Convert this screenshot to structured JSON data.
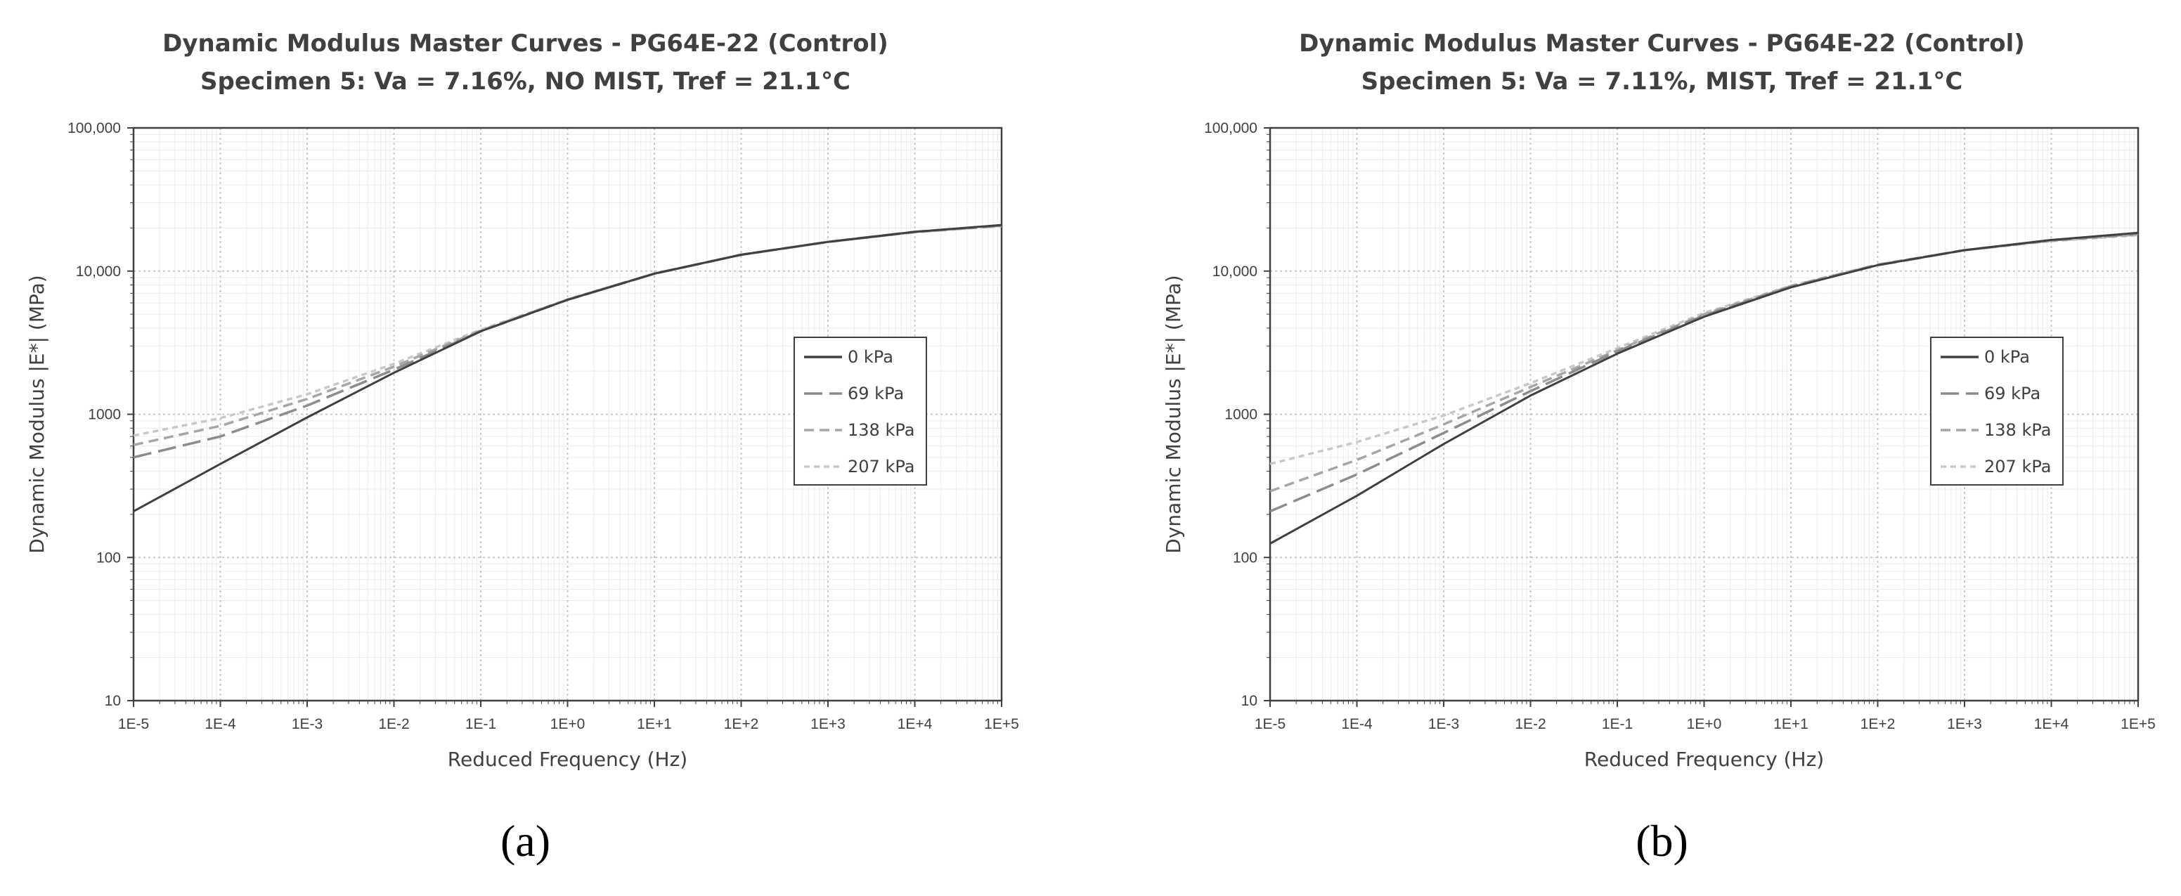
{
  "chart_data": [
    {
      "type": "line",
      "panel_label": "(a)",
      "title": "Dynamic Modulus Master Curves - PG64E-22 (Control)",
      "subtitle": "Specimen 5: Va = 7.16%, NO MIST, Tref = 21.1°C",
      "xlabel": "Reduced Frequency (Hz)",
      "ylabel": "Dynamic Modulus |E*| (MPa)",
      "xscale": "log",
      "yscale": "log",
      "xlim": [
        1e-05,
        100000
      ],
      "ylim": [
        10,
        100000
      ],
      "x_tick_labels": [
        "1E-5",
        "1E-4",
        "1E-3",
        "1E-2",
        "1E-1",
        "1E+0",
        "1E+1",
        "1E+2",
        "1E+3",
        "1E+4",
        "1E+5"
      ],
      "y_tick_labels": [
        "10",
        "100",
        "1000",
        "10,000",
        "100,000"
      ],
      "grid": true,
      "legend_position": "center-right",
      "x": [
        1e-05,
        0.0001,
        0.001,
        0.01,
        0.1,
        1,
        10,
        100,
        1000,
        10000,
        100000
      ],
      "series": [
        {
          "name": "0 kPa",
          "color": "#404040",
          "dash": "solid",
          "values": [
            210,
            450,
            950,
            1950,
            3800,
            6300,
            9600,
            13000,
            16000,
            18800,
            21000
          ]
        },
        {
          "name": "69 kPa",
          "color": "#8c8c8c",
          "dash": "long-dash",
          "values": [
            500,
            700,
            1150,
            2050,
            3800,
            6300,
            9600,
            13000,
            16000,
            18800,
            20800
          ]
        },
        {
          "name": "138 kPa",
          "color": "#a6a6a6",
          "dash": "dash",
          "values": [
            610,
            830,
            1280,
            2150,
            3850,
            6300,
            9600,
            13000,
            16000,
            18700,
            20700
          ]
        },
        {
          "name": "207 kPa",
          "color": "#c8c8c8",
          "dash": "short-dash",
          "values": [
            710,
            940,
            1380,
            2250,
            3900,
            6350,
            9600,
            13000,
            16000,
            18700,
            20600
          ]
        }
      ]
    },
    {
      "type": "line",
      "panel_label": "(b)",
      "title": "Dynamic Modulus Master Curves - PG64E-22 (Control)",
      "subtitle": "Specimen 5: Va = 7.11%, MIST, Tref = 21.1°C",
      "xlabel": "Reduced Frequency (Hz)",
      "ylabel": "Dynamic Modulus |E*| (MPa)",
      "xscale": "log",
      "yscale": "log",
      "xlim": [
        1e-05,
        100000
      ],
      "ylim": [
        10,
        100000
      ],
      "x_tick_labels": [
        "1E-5",
        "1E-4",
        "1E-3",
        "1E-2",
        "1E-1",
        "1E+0",
        "1E+1",
        "1E+2",
        "1E+3",
        "1E+4",
        "1E+5"
      ],
      "y_tick_labels": [
        "10",
        "100",
        "1000",
        "10,000",
        "100,000"
      ],
      "grid": true,
      "legend_position": "center-right",
      "x": [
        1e-05,
        0.0001,
        0.001,
        0.01,
        0.1,
        1,
        10,
        100,
        1000,
        10000,
        100000
      ],
      "series": [
        {
          "name": "0 kPa",
          "color": "#404040",
          "dash": "solid",
          "values": [
            125,
            270,
            620,
            1350,
            2650,
            4800,
            7700,
            11000,
            14000,
            16500,
            18500
          ]
        },
        {
          "name": "69 kPa",
          "color": "#8c8c8c",
          "dash": "long-dash",
          "values": [
            210,
            380,
            740,
            1450,
            2750,
            4900,
            7800,
            11000,
            14000,
            16400,
            18200
          ]
        },
        {
          "name": "138 kPa",
          "color": "#a6a6a6",
          "dash": "dash",
          "values": [
            290,
            480,
            850,
            1550,
            2800,
            5000,
            7850,
            11100,
            14000,
            16300,
            18000
          ]
        },
        {
          "name": "207 kPa",
          "color": "#c8c8c8",
          "dash": "short-dash",
          "values": [
            450,
            640,
            980,
            1650,
            2900,
            5100,
            7900,
            11100,
            14000,
            16200,
            17800
          ]
        }
      ]
    }
  ]
}
